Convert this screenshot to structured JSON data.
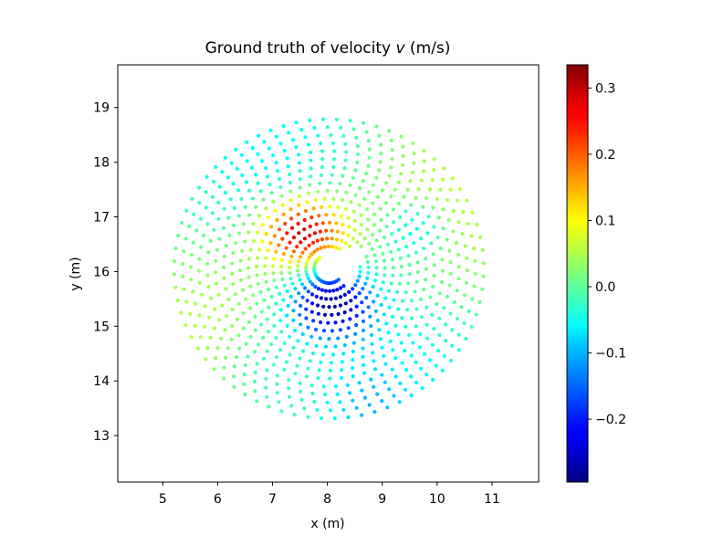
{
  "chart_data": {
    "type": "scatter",
    "title": {
      "prefix": "Ground truth of velocity ",
      "symbol": "v",
      "suffix": " (m/s)"
    },
    "xlabel": "x (m)",
    "ylabel": "y (m)",
    "xlim": [
      4.18,
      11.85
    ],
    "ylim": [
      12.15,
      19.78
    ],
    "xticks": [
      5,
      6,
      7,
      8,
      9,
      10,
      11
    ],
    "xtick_labels": [
      "5",
      "6",
      "7",
      "8",
      "9",
      "10",
      "11"
    ],
    "yticks": [
      13,
      14,
      15,
      16,
      17,
      18,
      19
    ],
    "ytick_labels": [
      "13",
      "14",
      "15",
      "16",
      "17",
      "18",
      "19"
    ],
    "grid": false,
    "colorbar": {
      "colormap": "jet",
      "range": [
        -0.295,
        0.335
      ],
      "ticks": [
        0.3,
        0.2,
        0.1,
        0.0,
        -0.1,
        -0.2
      ],
      "tick_labels": [
        "0.3",
        "0.2",
        "0.1",
        "0.0",
        "−0.1",
        "−0.2"
      ]
    },
    "field": {
      "center": [
        8.03,
        16.05
      ],
      "radius_min": 0.27,
      "radius_max": 2.82,
      "rings": 18,
      "spokes": 72,
      "cut_triangle": [
        [
          7.78,
          16.38
        ],
        [
          8.72,
          16.42
        ],
        [
          8.36,
          15.73
        ]
      ],
      "velocity_peaks": [
        {
          "x": 7.55,
          "y": 16.72,
          "value": 0.335
        },
        {
          "x": 8.05,
          "y": 15.42,
          "value": -0.295
        }
      ]
    }
  }
}
